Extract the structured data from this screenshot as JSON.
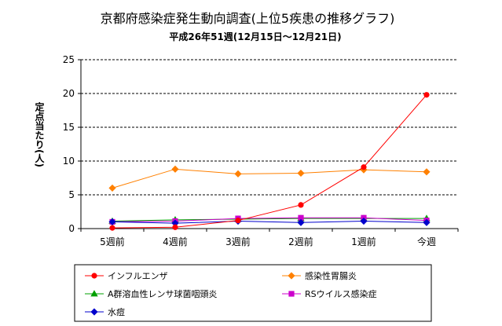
{
  "chart_data": {
    "type": "line",
    "title": "京都府感染症発生動向調査(上位5疾患の推移グラフ)",
    "subtitle": "平成26年51週(12月15日～12月21日)",
    "ylabel": "定点当たり(人)",
    "xlabel": "",
    "categories": [
      "5週前",
      "4週前",
      "3週前",
      "2週前",
      "1週前",
      "今週"
    ],
    "ylim": [
      0,
      25
    ],
    "yticks": [
      0,
      5,
      10,
      15,
      20,
      25
    ],
    "grid": true,
    "legend_position": "bottom",
    "series": [
      {
        "name": "インフルエンザ",
        "color": "#ff0000",
        "marker": "circle",
        "values": [
          0.1,
          0.2,
          1.2,
          3.5,
          9.1,
          19.8
        ]
      },
      {
        "name": "感染性胃腸炎",
        "color": "#ff8000",
        "marker": "diamond",
        "values": [
          6.0,
          8.8,
          8.1,
          8.2,
          8.7,
          8.4
        ]
      },
      {
        "name": "A群溶血性レンサ球菌咽頭炎",
        "color": "#00a000",
        "marker": "triangle",
        "values": [
          1.1,
          1.3,
          1.4,
          1.5,
          1.5,
          1.5
        ]
      },
      {
        "name": "RSウイルス感染症",
        "color": "#cc00cc",
        "marker": "square",
        "values": [
          1.0,
          1.1,
          1.5,
          1.6,
          1.6,
          1.2
        ]
      },
      {
        "name": "水痘",
        "color": "#0000cc",
        "marker": "diamond",
        "values": [
          1.0,
          0.8,
          1.1,
          0.9,
          1.1,
          0.9
        ]
      }
    ]
  }
}
